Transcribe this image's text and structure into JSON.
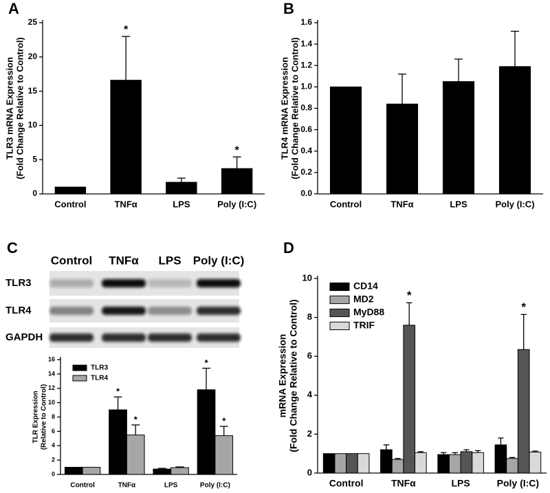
{
  "chart_data": [
    {
      "type": "bar",
      "panel": "A",
      "ylabel": [
        "TLR3 mRNA Expression",
        "(Fold Change Relative to Control)"
      ],
      "categories": [
        "Control",
        "TNFα",
        "LPS",
        "Poly (I:C)"
      ],
      "series": [
        {
          "color": "#000000",
          "values": [
            1.0,
            16.6,
            1.7,
            3.7
          ],
          "errors": [
            null,
            6.4,
            0.6,
            1.7
          ],
          "annotations": [
            null,
            "*",
            null,
            "*"
          ]
        }
      ],
      "ylim": [
        0,
        25
      ],
      "yticks": [
        0,
        5,
        10,
        15,
        20,
        25
      ]
    },
    {
      "type": "bar",
      "panel": "B",
      "ylabel": [
        "TLR4 mRNA Expression",
        "(Fold Change Relative to Control)"
      ],
      "categories": [
        "Control",
        "TNFα",
        "LPS",
        "Poly (I:C)"
      ],
      "series": [
        {
          "color": "#000000",
          "values": [
            1.0,
            0.84,
            1.05,
            1.19
          ],
          "errors": [
            null,
            0.28,
            0.21,
            0.33
          ]
        }
      ],
      "ylim": [
        0,
        1.6
      ],
      "yticks": [
        {
          "value": 0,
          "label": "0.0"
        },
        0.2,
        0.4,
        0.6,
        0.8,
        {
          "value": 1,
          "label": "1.0"
        },
        1.2,
        1.4,
        1.6
      ]
    },
    {
      "type": "bar",
      "panel": "C",
      "ylabel": [
        "TLR Expression",
        "(Relative to Control)"
      ],
      "categories": [
        "Control",
        "TNFα",
        "LPS",
        "Poly (I:C)"
      ],
      "series": [
        {
          "name": "TLR3",
          "color": "#000000",
          "values": [
            1.0,
            9.0,
            0.75,
            11.8
          ],
          "errors": [
            null,
            1.8,
            0.1,
            3.0
          ],
          "annotations": [
            null,
            "*",
            null,
            "*"
          ]
        },
        {
          "name": "TLR4",
          "color": "#a6a6a6",
          "values": [
            1.0,
            5.5,
            0.95,
            5.4
          ],
          "errors": [
            null,
            1.4,
            0.1,
            1.3
          ],
          "annotations": [
            null,
            "*",
            null,
            "*"
          ]
        }
      ],
      "ylim": [
        0,
        16
      ],
      "yticks": [
        0,
        2,
        4,
        6,
        8,
        10,
        12,
        14,
        16
      ],
      "legend": "upper left"
    },
    {
      "type": "bar",
      "panel": "D",
      "ylabel": [
        "mRNA Expression",
        "(Fold Change Relative to Control)"
      ],
      "categories": [
        "Control",
        "TNFα",
        "LPS",
        "Poly (I:C)"
      ],
      "series": [
        {
          "name": "CD14",
          "color": "#000000",
          "values": [
            1.0,
            1.2,
            0.95,
            1.45
          ],
          "errors": [
            null,
            0.25,
            0.1,
            0.35
          ]
        },
        {
          "name": "MD2",
          "color": "#a6a6a6",
          "values": [
            1.0,
            0.7,
            0.95,
            0.75
          ],
          "errors": [
            null,
            0.05,
            0.1,
            0.05
          ]
        },
        {
          "name": "MyD88",
          "color": "#555555",
          "values": [
            1.0,
            7.6,
            1.1,
            6.35
          ],
          "errors": [
            null,
            1.15,
            0.1,
            1.8
          ],
          "annotations": [
            null,
            "*",
            null,
            "*"
          ]
        },
        {
          "name": "TRIF",
          "color": "#d9d9d9",
          "values": [
            1.0,
            1.05,
            1.05,
            1.08
          ],
          "errors": [
            null,
            0.05,
            0.1,
            0.05
          ]
        }
      ],
      "ylim": [
        0,
        10
      ],
      "yticks": [
        0,
        2,
        4,
        6,
        8,
        10
      ],
      "legend": "upper left"
    }
  ],
  "blot": {
    "lanes": [
      "Control",
      "TNFα",
      "LPS",
      "Poly (I:C)"
    ],
    "rows": [
      "TLR3",
      "TLR4",
      "GAPDH"
    ]
  }
}
